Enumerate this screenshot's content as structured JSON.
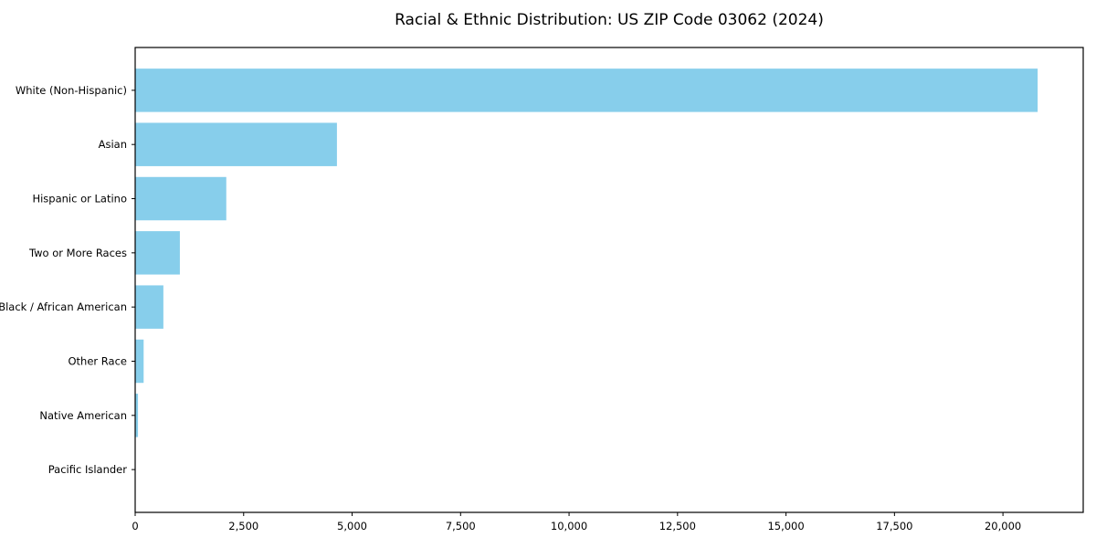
{
  "chart_data": {
    "type": "bar",
    "orientation": "horizontal",
    "title": "Racial & Ethnic Distribution: US ZIP Code 03062 (2024)",
    "categories": [
      "White (Non-Hispanic)",
      "Asian",
      "Hispanic or Latino",
      "Two or More Races",
      "Black / African American",
      "Other Race",
      "Native American",
      "Pacific Islander"
    ],
    "values": [
      20800,
      4650,
      2100,
      1030,
      650,
      195,
      65,
      10
    ],
    "bar_color": "#87CEEB",
    "axis_color": "#000000",
    "xlabel": "",
    "ylabel": "",
    "xlim": [
      0,
      21850
    ],
    "x_ticks": [
      0,
      2500,
      5000,
      7500,
      10000,
      12500,
      15000,
      17500,
      20000
    ],
    "x_tick_labels": [
      "0",
      "2,500",
      "5,000",
      "7,500",
      "10,000",
      "12,500",
      "15,000",
      "17,500",
      "20,000"
    ],
    "grid": false,
    "legend_position": "none"
  }
}
